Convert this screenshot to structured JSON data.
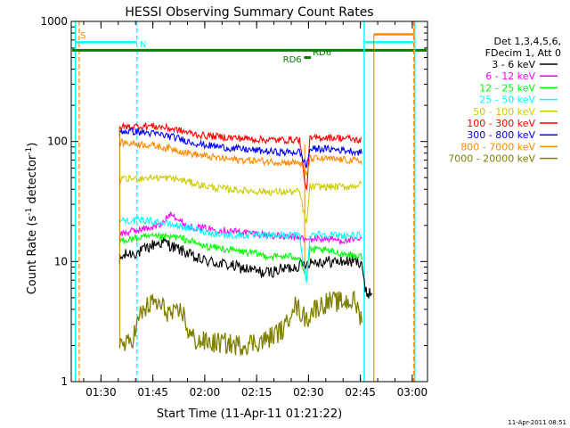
{
  "chart_data": {
    "type": "line",
    "title": "HESSI Observing Summary Count Rates",
    "xlabel": "Start Time (11-Apr-11 01:21:22)",
    "ylabel": "Count Rate (s",
    "ylabel_sup1": "-1",
    "ylabel_mid": " detector",
    "ylabel_sup2": "-1",
    "ylabel_end": ")",
    "yscale": "log",
    "ylim": [
      1,
      1000
    ],
    "xlim_minutes": [
      0,
      103
    ],
    "x_ticks": [
      {
        "label": "01:30",
        "t": 8.6
      },
      {
        "label": "01:45",
        "t": 23.6
      },
      {
        "label": "02:00",
        "t": 38.6
      },
      {
        "label": "02:15",
        "t": 53.6
      },
      {
        "label": "02:30",
        "t": 68.6
      },
      {
        "label": "02:45",
        "t": 83.6
      },
      {
        "label": "03:00",
        "t": 98.6
      }
    ],
    "y_ticks": [
      {
        "label": "1",
        "v": 1
      },
      {
        "label": "10",
        "v": 10
      },
      {
        "label": "100",
        "v": 100
      },
      {
        "label": "1000",
        "v": 1000
      }
    ],
    "legend": {
      "placement": "right",
      "header": [
        "Det 1,3,4,5,6,",
        "FDecim 1, Att 0"
      ]
    },
    "series": [
      {
        "name": "3 - 6 keV",
        "color": "#000000",
        "points": [
          [
            14,
            10.5
          ],
          [
            16,
            11.5
          ],
          [
            20,
            12
          ],
          [
            24,
            14
          ],
          [
            27,
            14.5
          ],
          [
            30,
            13
          ],
          [
            33,
            12
          ],
          [
            36,
            10.5
          ],
          [
            40,
            10
          ],
          [
            44,
            9.5
          ],
          [
            48,
            9
          ],
          [
            52,
            8.5
          ],
          [
            56,
            8
          ],
          [
            60,
            8.5
          ],
          [
            64,
            9
          ],
          [
            67,
            9.5
          ],
          [
            69,
            10
          ],
          [
            72,
            10
          ],
          [
            76,
            10
          ],
          [
            80,
            10
          ],
          [
            84,
            10
          ],
          [
            85,
            5.5
          ],
          [
            87,
            5.5
          ]
        ]
      },
      {
        "name": "6 - 12 keV",
        "color": "#ff00ff",
        "points": [
          [
            14,
            17
          ],
          [
            18,
            18
          ],
          [
            22,
            19
          ],
          [
            26,
            20
          ],
          [
            29,
            26
          ],
          [
            31,
            22
          ],
          [
            34,
            19.5
          ],
          [
            38,
            19
          ],
          [
            42,
            18.5
          ],
          [
            46,
            18
          ],
          [
            50,
            17.5
          ],
          [
            54,
            17
          ],
          [
            58,
            16.5
          ],
          [
            62,
            16
          ],
          [
            66,
            16
          ],
          [
            68,
            15
          ],
          [
            70,
            15.5
          ],
          [
            74,
            15.5
          ],
          [
            78,
            15
          ],
          [
            82,
            15
          ],
          [
            84,
            15.5
          ]
        ]
      },
      {
        "name": "12 - 25 keV",
        "color": "#00ff00",
        "points": [
          [
            14,
            15
          ],
          [
            18,
            15.5
          ],
          [
            22,
            16
          ],
          [
            26,
            16
          ],
          [
            30,
            16
          ],
          [
            34,
            15
          ],
          [
            38,
            13.5
          ],
          [
            42,
            13
          ],
          [
            46,
            12.5
          ],
          [
            50,
            12
          ],
          [
            54,
            11.5
          ],
          [
            58,
            11
          ],
          [
            62,
            11
          ],
          [
            66,
            11
          ],
          [
            68,
            7
          ],
          [
            69,
            12.5
          ],
          [
            72,
            12.5
          ],
          [
            76,
            12
          ],
          [
            80,
            11.5
          ],
          [
            84,
            11
          ]
        ]
      },
      {
        "name": "25 - 50 keV",
        "color": "#00ffff",
        "points": [
          [
            14,
            22
          ],
          [
            18,
            22
          ],
          [
            22,
            22
          ],
          [
            26,
            21
          ],
          [
            30,
            20
          ],
          [
            34,
            19
          ],
          [
            38,
            18
          ],
          [
            42,
            17
          ],
          [
            46,
            16.5
          ],
          [
            50,
            16.5
          ],
          [
            54,
            16.5
          ],
          [
            58,
            16.5
          ],
          [
            62,
            16.5
          ],
          [
            66,
            16.5
          ],
          [
            68,
            6.5
          ],
          [
            69,
            17
          ],
          [
            72,
            17
          ],
          [
            76,
            16.5
          ],
          [
            80,
            16.5
          ],
          [
            84,
            16.5
          ]
        ]
      },
      {
        "name": "50 - 100 keV",
        "color": "#cccc00",
        "points": [
          [
            14,
            48
          ],
          [
            18,
            49
          ],
          [
            22,
            50
          ],
          [
            26,
            50
          ],
          [
            30,
            49
          ],
          [
            34,
            46
          ],
          [
            38,
            43
          ],
          [
            42,
            41
          ],
          [
            46,
            40
          ],
          [
            50,
            39
          ],
          [
            54,
            38.5
          ],
          [
            58,
            38
          ],
          [
            62,
            38
          ],
          [
            66,
            38
          ],
          [
            68,
            20
          ],
          [
            69,
            42
          ],
          [
            72,
            42
          ],
          [
            76,
            42
          ],
          [
            80,
            42
          ],
          [
            84,
            44
          ]
        ]
      },
      {
        "name": "100 - 300 keV",
        "color": "#ff0000",
        "points": [
          [
            14,
            132
          ],
          [
            18,
            133
          ],
          [
            22,
            135
          ],
          [
            26,
            132
          ],
          [
            30,
            126
          ],
          [
            34,
            118
          ],
          [
            38,
            112
          ],
          [
            42,
            110
          ],
          [
            46,
            108
          ],
          [
            50,
            106
          ],
          [
            54,
            104
          ],
          [
            58,
            103
          ],
          [
            62,
            103
          ],
          [
            66,
            104
          ],
          [
            68,
            37
          ],
          [
            69,
            105
          ],
          [
            72,
            108
          ],
          [
            76,
            108
          ],
          [
            80,
            106
          ],
          [
            84,
            101
          ]
        ]
      },
      {
        "name": "300 - 800 keV",
        "color": "#0000ff",
        "points": [
          [
            14,
            122
          ],
          [
            18,
            121
          ],
          [
            22,
            118
          ],
          [
            26,
            114
          ],
          [
            30,
            108
          ],
          [
            34,
            100
          ],
          [
            38,
            94
          ],
          [
            42,
            91
          ],
          [
            46,
            88
          ],
          [
            50,
            86
          ],
          [
            54,
            84
          ],
          [
            58,
            82
          ],
          [
            62,
            81
          ],
          [
            66,
            82
          ],
          [
            68,
            62
          ],
          [
            69,
            86
          ],
          [
            72,
            87
          ],
          [
            76,
            86
          ],
          [
            80,
            84
          ],
          [
            84,
            81
          ]
        ]
      },
      {
        "name": "800 - 7000 keV",
        "color": "#ff8800",
        "points": [
          [
            14,
            98
          ],
          [
            18,
            96
          ],
          [
            22,
            94
          ],
          [
            26,
            90
          ],
          [
            30,
            86
          ],
          [
            34,
            80
          ],
          [
            38,
            76
          ],
          [
            42,
            73
          ],
          [
            46,
            71
          ],
          [
            50,
            70
          ],
          [
            54,
            69
          ],
          [
            58,
            68
          ],
          [
            62,
            67
          ],
          [
            66,
            67
          ],
          [
            68,
            52
          ],
          [
            69,
            72
          ],
          [
            72,
            72
          ],
          [
            76,
            71
          ],
          [
            80,
            70
          ],
          [
            84,
            68
          ]
        ]
      },
      {
        "name": "7000 - 20000 keV",
        "color": "#808000",
        "points": [
          [
            14,
            2.1
          ],
          [
            16,
            2.0
          ],
          [
            18,
            2.4
          ],
          [
            20,
            3.6
          ],
          [
            22,
            4.2
          ],
          [
            24,
            4.6
          ],
          [
            26,
            4.2
          ],
          [
            28,
            3.8
          ],
          [
            30,
            3.5
          ],
          [
            32,
            4.0
          ],
          [
            34,
            2.5
          ],
          [
            36,
            2.2
          ],
          [
            40,
            2.1
          ],
          [
            44,
            2.1
          ],
          [
            48,
            2.0
          ],
          [
            52,
            2.1
          ],
          [
            56,
            2.2
          ],
          [
            60,
            2.6
          ],
          [
            62,
            2.8
          ],
          [
            64,
            4.5
          ],
          [
            66,
            3.9
          ],
          [
            68,
            3.3
          ],
          [
            70,
            4.0
          ],
          [
            74,
            4.6
          ],
          [
            78,
            4.6
          ],
          [
            82,
            4.7
          ],
          [
            84,
            3.2
          ]
        ]
      }
    ],
    "annotations": [
      {
        "label": "S",
        "color": "#ff8800"
      },
      {
        "label": "N",
        "color": "#00ffff"
      },
      {
        "label": "RD6",
        "color": "#008000"
      },
      {
        "label": "RD6",
        "color": "#008000"
      }
    ]
  },
  "footer": {
    "timestamp": "11-Apr-2011 08:51"
  }
}
